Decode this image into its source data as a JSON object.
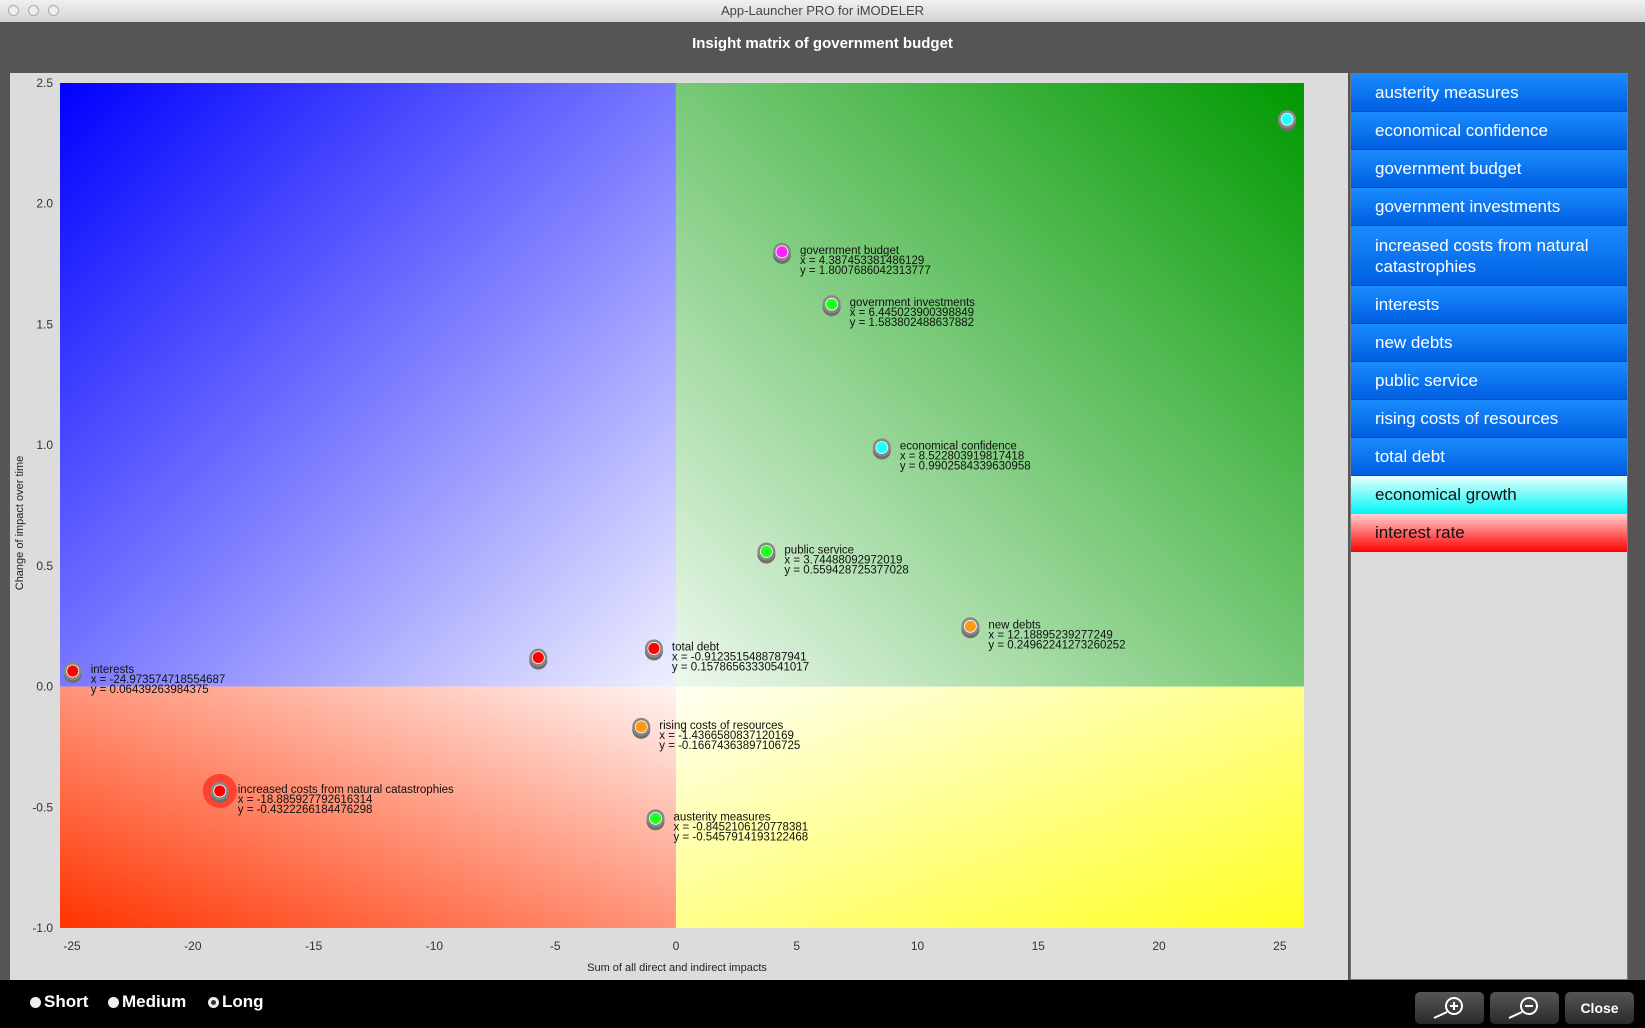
{
  "window": {
    "title": "App-Launcher PRO for iMODELER"
  },
  "header": {
    "title": "Insight matrix of government budget"
  },
  "sidebar": {
    "items": [
      {
        "label": "austerity measures",
        "style": "blue"
      },
      {
        "label": "economical confidence",
        "style": "blue"
      },
      {
        "label": "government budget",
        "style": "blue"
      },
      {
        "label": "government investments",
        "style": "blue"
      },
      {
        "label": "increased costs from natural catastrophies",
        "style": "blue"
      },
      {
        "label": "interests",
        "style": "blue"
      },
      {
        "label": "new debts",
        "style": "blue"
      },
      {
        "label": "public service",
        "style": "blue"
      },
      {
        "label": "rising costs of resources",
        "style": "blue"
      },
      {
        "label": "total debt",
        "style": "blue"
      },
      {
        "label": "economical growth",
        "style": "cyan"
      },
      {
        "label": "interest rate",
        "style": "red"
      }
    ]
  },
  "footer": {
    "radios": [
      {
        "label": "Short",
        "selected": false
      },
      {
        "label": "Medium",
        "selected": false
      },
      {
        "label": "Long",
        "selected": true
      }
    ],
    "zoom_in_icon": "zoom-in-icon",
    "zoom_out_icon": "zoom-out-icon",
    "close_label": "Close"
  },
  "chart_data": {
    "type": "scatter",
    "xlabel": "Sum of all direct and indirect impacts",
    "ylabel": "Change of impact over time",
    "xlim": [
      -25.5,
      26
    ],
    "ylim": [
      -1.0,
      2.5
    ],
    "xticks": [
      "-25",
      "-20",
      "-15",
      "-10",
      "-5",
      "0",
      "5",
      "10",
      "15",
      "20",
      "25"
    ],
    "yticks": [
      "2.5",
      "2.0",
      "1.5",
      "1.0",
      "0.5",
      "0.0",
      "-0.5",
      "-1.0"
    ],
    "quadrant_colors": {
      "top_left": "#0000ff",
      "top_right": "#009900",
      "bottom_left": "#ff3300",
      "bottom_right": "#ffff22"
    },
    "points": [
      {
        "name": "government budget",
        "x": 4.387453381486129,
        "y": 1.8007686042313777,
        "xtext": "x = 4.387453381486129",
        "ytext": "y = 1.8007686042313777",
        "color": "#ff22ff"
      },
      {
        "name": "government investments",
        "x": 6.445023900398849,
        "y": 1.583802488637882,
        "xtext": "x = 6.445023900398849",
        "ytext": "y = 1.583802488637882",
        "color": "#22ff22"
      },
      {
        "name": "economical confidence",
        "x": 8.522803919817418,
        "y": 0.9902584339630958,
        "xtext": "x = 8.522803919817418",
        "ytext": "y = 0.9902584339630958",
        "color": "#22ffff"
      },
      {
        "name": "public service",
        "x": 3.74488092972019,
        "y": 0.559428725377028,
        "xtext": "x = 3.74488092972019",
        "ytext": "y = 0.559428725377028",
        "color": "#22ff22"
      },
      {
        "name": "new debts",
        "x": 12.18895239277249,
        "y": 0.24962241273260252,
        "xtext": "x = 12.18895239277249",
        "ytext": "y = 0.24962241273260252",
        "color": "#ff9911"
      },
      {
        "name": "interests",
        "x": -24.973574718554687,
        "y": 0.06439263984375,
        "xtext": "x = -24.973574718554687",
        "ytext": "y = 0.06439263984375",
        "color": "#ff0000"
      },
      {
        "name": "total debt",
        "x": -0.9123515488787941,
        "y": 0.15786563330541017,
        "xtext": "x = -0.9123515488787941",
        "ytext": "y = 0.15786563330541017",
        "color": "#ff0000"
      },
      {
        "name": "rising costs of resources",
        "x": -1.4366580837120169,
        "y": -0.16674363897106725,
        "xtext": "x = -1.4366580837120169",
        "ytext": "y = -0.16674363897106725",
        "color": "#ff9911"
      },
      {
        "name": "increased costs from natural catastrophies",
        "x": -18.885927792616314,
        "y": -0.4322266184476298,
        "xtext": "x = -18.885927792616314",
        "ytext": "y = -0.4322266184476298",
        "color": "#ff0000",
        "highlighted": true
      },
      {
        "name": "austerity measures",
        "x": -0.8452106120778381,
        "y": -0.5457914193122468,
        "xtext": "x = -0.8452106120778381",
        "ytext": "y = -0.5457914193122468",
        "color": "#22ff22"
      },
      {
        "name": "",
        "x": -5.7,
        "y": 0.12,
        "color": "#ff0000"
      },
      {
        "name": "",
        "x": 25.3,
        "y": 2.35,
        "color": "#22ffff"
      }
    ]
  }
}
